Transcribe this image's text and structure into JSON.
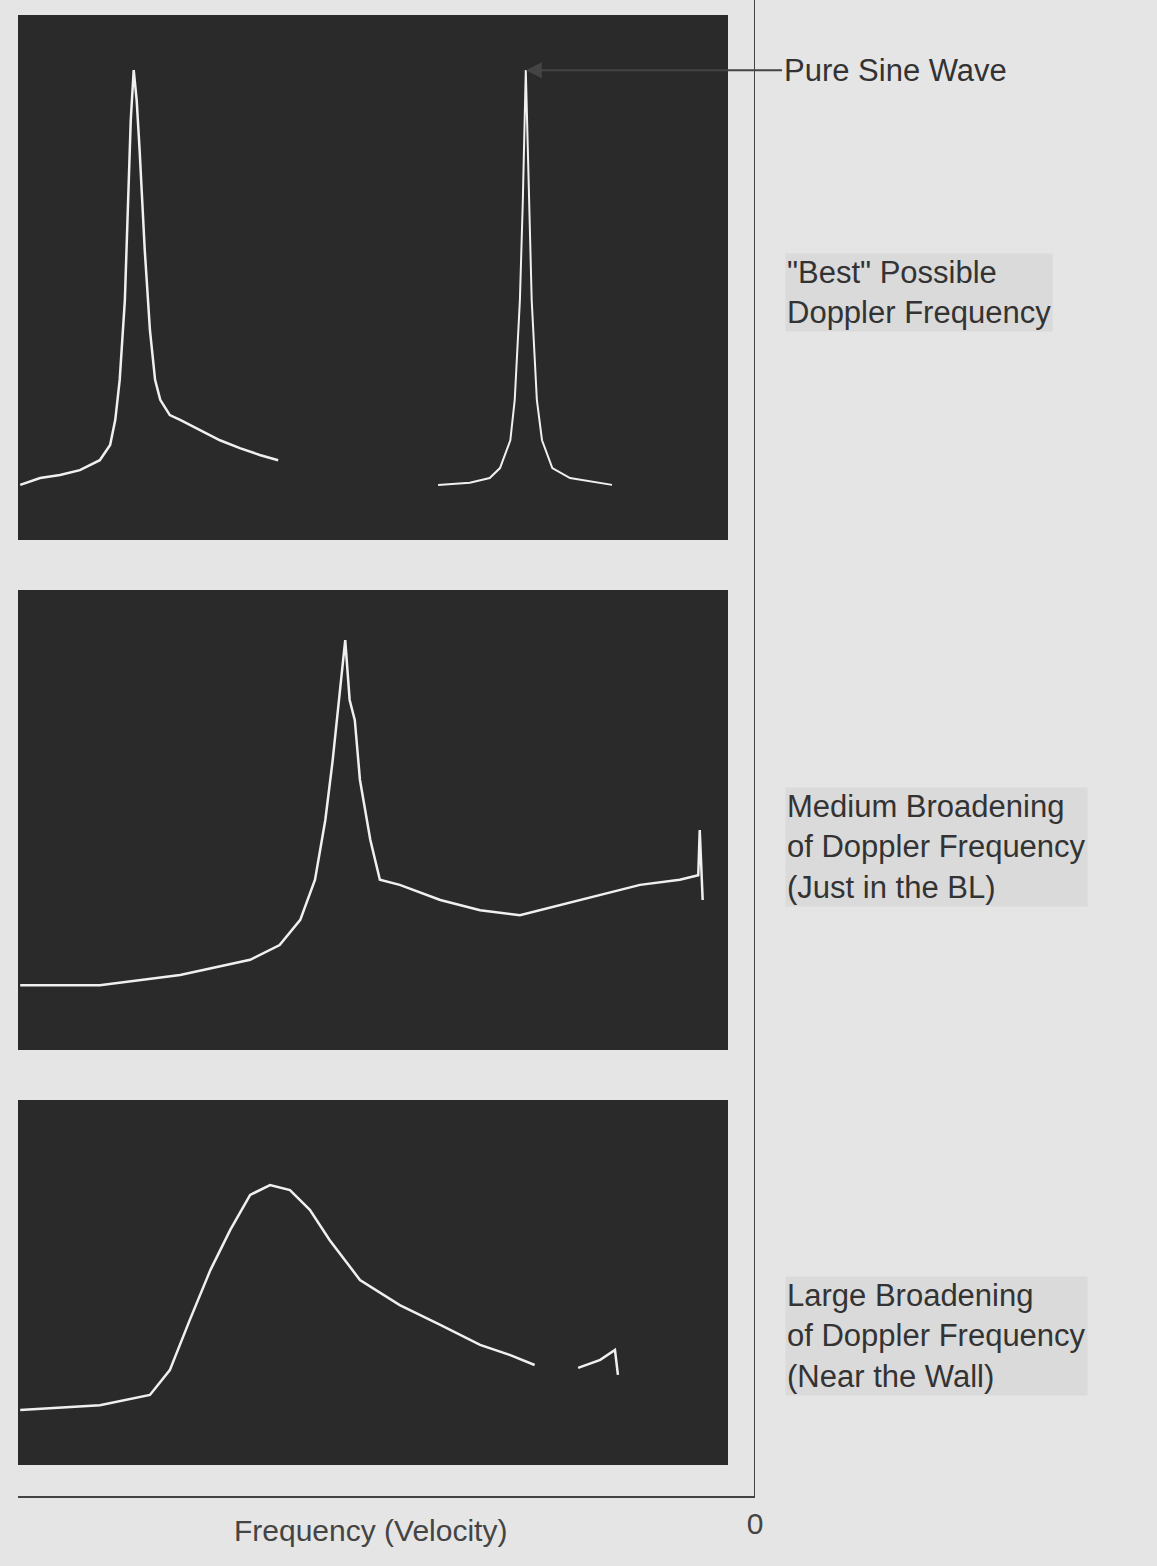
{
  "chart_data": [
    {
      "type": "line",
      "xlim": [
        1,
        0
      ],
      "ylim": [
        0,
        1
      ],
      "tick_labels": false,
      "label": [
        "\"Best\" Possible",
        "Doppler Frequency"
      ],
      "series": [
        {
          "x": [
            0.997,
            0.97,
            0.943,
            0.916,
            0.889,
            0.875,
            0.868,
            0.862,
            0.855,
            0.851,
            0.847,
            0.843,
            0.839,
            0.835,
            0.828,
            0.821,
            0.814,
            0.807,
            0.794,
            0.78,
            0.753,
            0.726,
            0.699,
            0.672,
            0.647
          ],
          "values": [
            0.105,
            0.118,
            0.124,
            0.133,
            0.152,
            0.181,
            0.229,
            0.305,
            0.457,
            0.648,
            0.8,
            0.895,
            0.838,
            0.743,
            0.552,
            0.4,
            0.305,
            0.267,
            0.238,
            0.229,
            0.21,
            0.19,
            0.175,
            0.162,
            0.152
          ]
        },
        {
          "name": "Pure Sine Wave",
          "x": [
            0.43,
            0.387,
            0.36,
            0.346,
            0.332,
            0.326,
            0.319,
            0.315,
            0.311,
            0.307,
            0.303,
            0.296,
            0.289,
            0.275,
            0.251,
            0.194
          ],
          "values": [
            0.105,
            0.109,
            0.118,
            0.137,
            0.19,
            0.267,
            0.457,
            0.648,
            0.895,
            0.648,
            0.457,
            0.267,
            0.19,
            0.137,
            0.118,
            0.105
          ]
        }
      ]
    },
    {
      "type": "line",
      "xlim": [
        1,
        0
      ],
      "ylim": [
        0,
        1
      ],
      "tick_labels": false,
      "label": [
        "Medium Broadening",
        "of Doppler Frequency",
        "(Just in the BL)"
      ],
      "series": [
        {
          "x": [
            0.997,
            0.889,
            0.78,
            0.685,
            0.645,
            0.617,
            0.597,
            0.583,
            0.573,
            0.563,
            0.556,
            0.55,
            0.543,
            0.536,
            0.522,
            0.509,
            0.482,
            0.427,
            0.373,
            0.319,
            0.265,
            0.21,
            0.156,
            0.102,
            0.077,
            0.075,
            0.071
          ],
          "values": [
            0.141,
            0.141,
            0.163,
            0.196,
            0.228,
            0.283,
            0.37,
            0.5,
            0.63,
            0.783,
            0.891,
            0.761,
            0.717,
            0.587,
            0.457,
            0.37,
            0.359,
            0.326,
            0.304,
            0.293,
            0.315,
            0.337,
            0.359,
            0.37,
            0.38,
            0.478,
            0.326
          ]
        }
      ]
    },
    {
      "type": "line",
      "xlim": [
        1,
        0
      ],
      "ylim": [
        0,
        1
      ],
      "xticks": [
        0
      ],
      "tick_labels": "x",
      "x_label": "Frequency (Velocity)",
      "label": [
        "Large Broadening",
        "of Doppler Frequency",
        "(Near the Wall)"
      ],
      "series": [
        {
          "x": [
            0.997,
            0.889,
            0.821,
            0.794,
            0.767,
            0.739,
            0.712,
            0.685,
            0.658,
            0.631,
            0.604,
            0.577,
            0.536,
            0.482,
            0.427,
            0.373,
            0.332,
            0.299,
            0.27,
            0.24,
            0.21,
            0.19,
            0.186
          ],
          "values": [
            0.151,
            0.164,
            0.192,
            0.26,
            0.397,
            0.534,
            0.644,
            0.74,
            0.767,
            0.753,
            0.699,
            0.616,
            0.507,
            0.438,
            0.384,
            0.329,
            0.301,
            0.274,
            null,
            0.266,
            0.288,
            0.315,
            0.247
          ]
        }
      ]
    }
  ]
}
